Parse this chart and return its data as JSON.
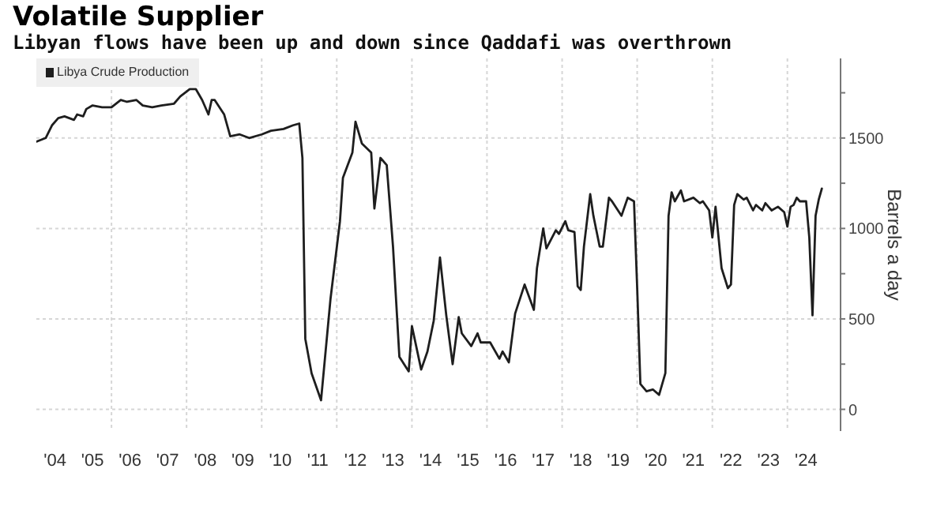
{
  "chart_data": {
    "type": "line",
    "title": "Volatile Supplier",
    "subtitle": "Libyan flows have been up and down since Qaddafi was overthrown",
    "ylabel": "Barrels a day",
    "x": [
      "2004-01",
      "2004-04",
      "2004-06",
      "2004-08",
      "2004-10",
      "2005-01",
      "2005-02",
      "2005-04",
      "2005-05",
      "2005-07",
      "2005-10",
      "2006-01",
      "2006-04",
      "2006-06",
      "2006-09",
      "2006-11",
      "2007-02",
      "2007-05",
      "2007-09",
      "2007-11",
      "2008-02",
      "2008-04",
      "2008-06",
      "2008-08",
      "2008-09",
      "2008-10",
      "2009-01",
      "2009-03",
      "2009-06",
      "2009-09",
      "2010-01",
      "2010-04",
      "2010-08",
      "2010-11",
      "2011-01",
      "2011-02",
      "2011-03",
      "2011-05",
      "2011-08",
      "2011-11",
      "2012-02",
      "2012-03",
      "2012-06",
      "2012-07",
      "2012-09",
      "2012-12",
      "2013-01",
      "2013-03",
      "2013-05",
      "2013-07",
      "2013-09",
      "2013-12",
      "2014-01",
      "2014-04",
      "2014-06",
      "2014-08",
      "2014-10",
      "2014-12",
      "2015-02",
      "2015-04",
      "2015-05",
      "2015-08",
      "2015-10",
      "2015-11",
      "2016-02",
      "2016-05",
      "2016-06",
      "2016-08",
      "2016-10",
      "2017-01",
      "2017-04",
      "2017-05",
      "2017-07",
      "2017-08",
      "2017-11",
      "2017-12",
      "2018-02",
      "2018-03",
      "2018-05",
      "2018-06",
      "2018-07",
      "2018-08",
      "2018-10",
      "2018-11",
      "2019-01",
      "2019-02",
      "2019-04",
      "2019-05",
      "2019-08",
      "2019-10",
      "2019-12",
      "2020-01",
      "2020-02",
      "2020-04",
      "2020-06",
      "2020-08",
      "2020-10",
      "2020-11",
      "2020-12",
      "2021-01",
      "2021-03",
      "2021-04",
      "2021-07",
      "2021-09",
      "2021-10",
      "2021-12",
      "2022-01",
      "2022-02",
      "2022-04",
      "2022-06",
      "2022-07",
      "2022-08",
      "2022-09",
      "2022-11",
      "2022-12",
      "2023-02",
      "2023-03",
      "2023-05",
      "2023-06",
      "2023-08",
      "2023-10",
      "2023-12",
      "2024-01",
      "2024-02",
      "2024-03",
      "2024-04",
      "2024-05",
      "2024-07",
      "2024-08",
      "2024-09",
      "2024-10",
      "2024-11",
      "2024-12"
    ],
    "series": [
      {
        "name": "Libya Crude Production",
        "color": "#1e1e1e",
        "values": [
          1480,
          1500,
          1570,
          1610,
          1620,
          1600,
          1630,
          1620,
          1660,
          1680,
          1670,
          1670,
          1710,
          1700,
          1710,
          1680,
          1670,
          1680,
          1690,
          1730,
          1770,
          1770,
          1710,
          1630,
          1710,
          1710,
          1630,
          1510,
          1520,
          1500,
          1520,
          1540,
          1550,
          1570,
          1580,
          1390,
          390,
          200,
          50,
          610,
          1040,
          1280,
          1420,
          1590,
          1470,
          1420,
          1110,
          1390,
          1350,
          900,
          290,
          210,
          460,
          220,
          320,
          490,
          840,
          520,
          250,
          510,
          420,
          350,
          420,
          370,
          370,
          280,
          320,
          260,
          530,
          690,
          550,
          780,
          1000,
          890,
          990,
          970,
          1040,
          990,
          980,
          680,
          660,
          900,
          1190,
          1070,
          900,
          900,
          1170,
          1150,
          1070,
          1170,
          1150,
          670,
          140,
          100,
          110,
          80,
          200,
          1070,
          1200,
          1150,
          1210,
          1150,
          1170,
          1140,
          1150,
          1100,
          950,
          1120,
          780,
          670,
          690,
          1130,
          1190,
          1160,
          1170,
          1100,
          1130,
          1100,
          1140,
          1100,
          1120,
          1090,
          1010,
          1120,
          1130,
          1170,
          1150,
          1150,
          950,
          520,
          1070,
          1160,
          1220
        ]
      }
    ],
    "xlim": [
      "2004-01",
      "2025-06"
    ],
    "ylim": [
      -120,
      1940
    ],
    "xticks": [
      {
        "value": "2004-07",
        "label": "'04"
      },
      {
        "value": "2005-07",
        "label": "'05"
      },
      {
        "value": "2006",
        "label": null
      },
      {
        "value": "2006-07",
        "label": "'06"
      },
      {
        "value": "2007-07",
        "label": "'07"
      },
      {
        "value": "2008",
        "label": null
      },
      {
        "value": "2008-07",
        "label": "'08"
      },
      {
        "value": "2009-07",
        "label": "'09"
      },
      {
        "value": "2010",
        "label": null
      },
      {
        "value": "2010-07",
        "label": "'10"
      },
      {
        "value": "2011-07",
        "label": "'11"
      },
      {
        "value": "2012",
        "label": null
      },
      {
        "value": "2012-07",
        "label": "'12"
      },
      {
        "value": "2013-07",
        "label": "'13"
      },
      {
        "value": "2014",
        "label": null
      },
      {
        "value": "2014-07",
        "label": "'14"
      },
      {
        "value": "2015-07",
        "label": "'15"
      },
      {
        "value": "2016",
        "label": null
      },
      {
        "value": "2016-07",
        "label": "'16"
      },
      {
        "value": "2017-07",
        "label": "'17"
      },
      {
        "value": "2018",
        "label": null
      },
      {
        "value": "2018-07",
        "label": "'18"
      },
      {
        "value": "2019-07",
        "label": "'19"
      },
      {
        "value": "2020",
        "label": null
      },
      {
        "value": "2020-07",
        "label": "'20"
      },
      {
        "value": "2021-07",
        "label": "'21"
      },
      {
        "value": "2022",
        "label": null
      },
      {
        "value": "2022-07",
        "label": "'22"
      },
      {
        "value": "2023-07",
        "label": "'23"
      },
      {
        "value": "2024",
        "label": null
      },
      {
        "value": "2024-07",
        "label": "'24"
      }
    ],
    "yticks": [
      0,
      {
        "value": 250,
        "label": null
      },
      500,
      {
        "value": 750,
        "label": null
      },
      1000,
      {
        "value": 1250,
        "label": null
      },
      1500,
      {
        "value": 1750,
        "label": null
      }
    ],
    "grid": true,
    "legend": "top left",
    "line_style": "solid"
  }
}
